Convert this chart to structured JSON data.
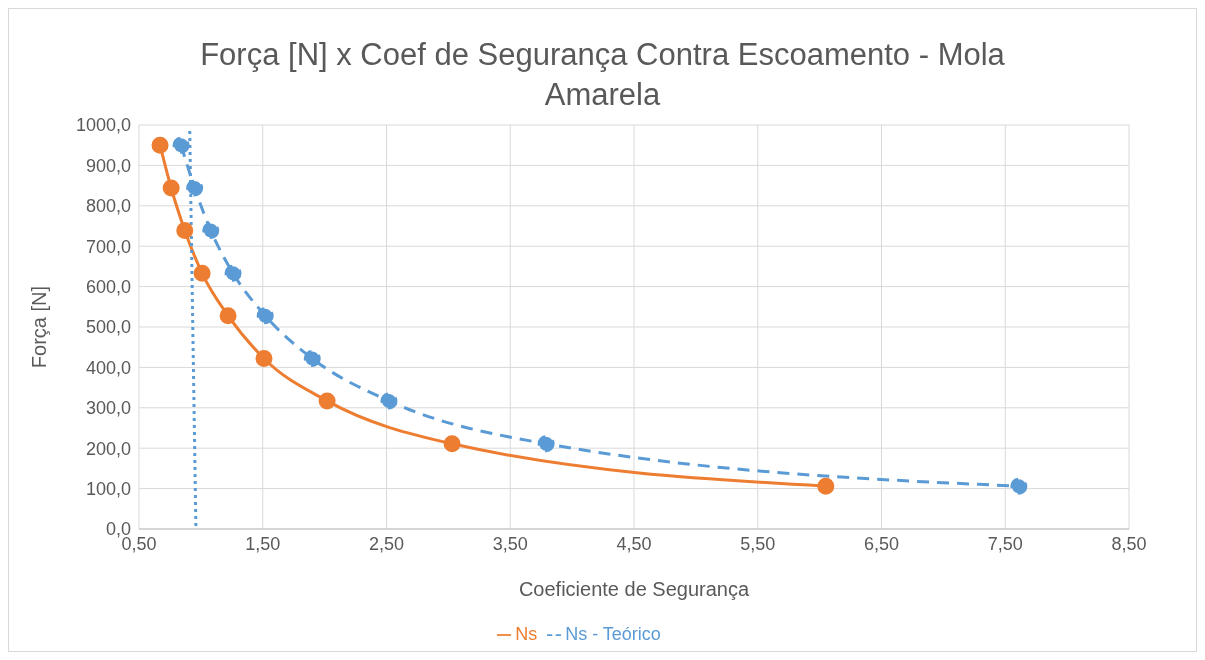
{
  "chart_data": {
    "type": "line",
    "title": "Força [N] x Coef de Segurança Contra Escoamento - Mola Amarela",
    "xlabel": "Coeficiente de Segurança",
    "ylabel": "Força [N]",
    "series": [
      {
        "name": "Ns - Teórico",
        "color": "#5b9bd5",
        "line_style": "dashed",
        "marker": "circle",
        "x": [
          0.84,
          0.95,
          1.08,
          1.26,
          1.52,
          1.9,
          2.52,
          3.79,
          7.61
        ],
        "values": [
          950,
          844,
          739,
          633,
          528,
          422,
          317,
          211,
          106
        ]
      },
      {
        "name": "Ns",
        "color": "#ed7d31",
        "line_style": "solid",
        "marker": "circle",
        "x": [
          0.67,
          0.76,
          0.87,
          1.01,
          1.22,
          1.51,
          2.02,
          3.03,
          6.05
        ],
        "values": [
          950,
          844,
          739,
          633,
          528,
          422,
          317,
          211,
          106
        ]
      },
      {
        "color": "#5b9bd5",
        "line_style": "dotted",
        "marker": "none",
        "x": [
          0.91,
          0.96
        ],
        "values": [
          985,
          0
        ]
      }
    ],
    "xlim": [
      0.5,
      8.5
    ],
    "xticks": [
      {
        "value": 0.5,
        "label": "0,50"
      },
      {
        "value": 1.5,
        "label": "1,50"
      },
      {
        "value": 2.5,
        "label": "2,50"
      },
      {
        "value": 3.5,
        "label": "3,50"
      },
      {
        "value": 4.5,
        "label": "4,50"
      },
      {
        "value": 5.5,
        "label": "5,50"
      },
      {
        "value": 6.5,
        "label": "6,50"
      },
      {
        "value": 7.5,
        "label": "7,50"
      },
      {
        "value": 8.5,
        "label": "8,50"
      }
    ],
    "ylim": [
      0,
      1000
    ],
    "yticks": [
      {
        "value": 0,
        "label": "0,0"
      },
      {
        "value": 100,
        "label": "100,0"
      },
      {
        "value": 200,
        "label": "200,0"
      },
      {
        "value": 300,
        "label": "300,0"
      },
      {
        "value": 400,
        "label": "400,0"
      },
      {
        "value": 500,
        "label": "500,0"
      },
      {
        "value": 600,
        "label": "600,0"
      },
      {
        "value": 700,
        "label": "700,0"
      },
      {
        "value": 800,
        "label": "800,0"
      },
      {
        "value": 900,
        "label": "900,0"
      },
      {
        "value": 1000,
        "label": "1000,0"
      }
    ],
    "grid": true,
    "legend": "bottom"
  }
}
